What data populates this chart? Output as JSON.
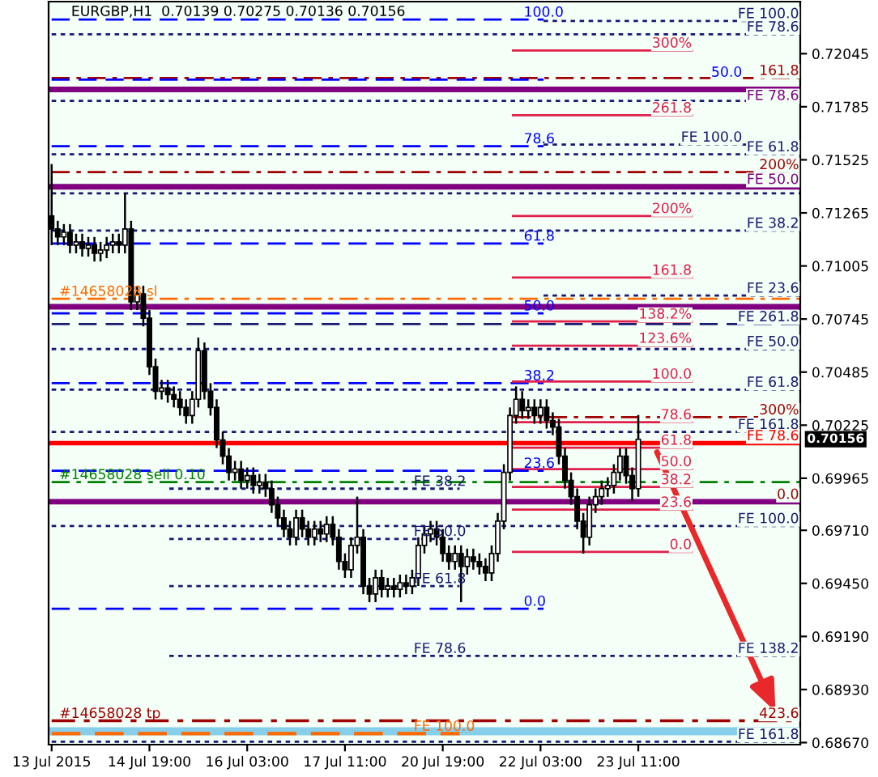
{
  "chart_data": {
    "type": "candlestick",
    "title": "EURGBP,H1  0.70139 0.70275 0.70136 0.70156",
    "color": "#000000",
    "categories": [
      "13 Jul 2015",
      null,
      null,
      null,
      null,
      null,
      null,
      null,
      null,
      null,
      null,
      null,
      null,
      null,
      null,
      null,
      "14 Jul 19:00",
      null,
      null,
      null,
      null,
      null,
      null,
      null,
      null,
      null,
      null,
      null,
      null,
      null,
      null,
      null,
      "16 Jul 03:00",
      null,
      null,
      null,
      null,
      null,
      null,
      null,
      null,
      null,
      null,
      null,
      null,
      null,
      null,
      null,
      "17 Jul 11:00",
      null,
      null,
      null,
      null,
      null,
      null,
      null,
      null,
      null,
      null,
      null,
      null,
      null,
      null,
      null,
      "20 Jul 19:00",
      null,
      null,
      null,
      null,
      null,
      null,
      null,
      null,
      null,
      null,
      null,
      null,
      null,
      null,
      null,
      "22 Jul 03:00",
      null,
      null,
      null,
      null,
      null,
      null,
      null,
      null,
      null,
      null,
      null,
      null,
      null,
      null,
      null,
      "23 Jul 11:00",
      null,
      null,
      null,
      null,
      null,
      null,
      null,
      null,
      null,
      null,
      null,
      null,
      null,
      null,
      null,
      null,
      null,
      null,
      null,
      null,
      null,
      null,
      null,
      null,
      null,
      null
    ],
    "ohlc": [
      [
        0.7125,
        0.71504,
        0.71107,
        0.71186
      ],
      [
        0.71186,
        0.71226,
        0.71107,
        0.71147
      ],
      [
        0.71147,
        0.7121,
        0.71107,
        0.7117
      ],
      [
        0.7117,
        0.7121,
        0.71067,
        0.71107
      ],
      [
        0.71107,
        0.71163,
        0.71067,
        0.71123
      ],
      [
        0.71123,
        0.71163,
        0.71051,
        0.71091
      ],
      [
        0.71091,
        0.71147,
        0.71051,
        0.71107
      ],
      [
        0.71107,
        0.71147,
        0.71027,
        0.71067
      ],
      [
        0.71067,
        0.71123,
        0.71027,
        0.71083
      ],
      [
        0.71083,
        0.71147,
        0.71043,
        0.71107
      ],
      [
        0.71107,
        0.71163,
        0.71067,
        0.71123
      ],
      [
        0.71123,
        0.71163,
        0.71067,
        0.71107
      ],
      [
        0.71107,
        0.71361,
        0.71067,
        0.71186
      ],
      [
        0.71186,
        0.71226,
        0.70789,
        0.70829
      ],
      [
        0.70829,
        0.70908,
        0.70789,
        0.70868
      ],
      [
        0.70868,
        0.70908,
        0.70709,
        0.70749
      ],
      [
        0.70749,
        0.70789,
        0.70471,
        0.70511
      ],
      [
        0.70511,
        0.70551,
        0.70351,
        0.70391
      ],
      [
        0.70391,
        0.70447,
        0.70351,
        0.70407
      ],
      [
        0.70407,
        0.70447,
        0.70335,
        0.70375
      ],
      [
        0.70375,
        0.70415,
        0.70312,
        0.70352
      ],
      [
        0.70352,
        0.70392,
        0.70272,
        0.70312
      ],
      [
        0.70312,
        0.70352,
        0.70232,
        0.70272
      ],
      [
        0.70272,
        0.70392,
        0.70232,
        0.70352
      ],
      [
        0.70352,
        0.70654,
        0.70312,
        0.7059
      ],
      [
        0.7059,
        0.7063,
        0.70351,
        0.70391
      ],
      [
        0.70391,
        0.70431,
        0.70272,
        0.70312
      ],
      [
        0.70312,
        0.70352,
        0.70113,
        0.70153
      ],
      [
        0.70153,
        0.70193,
        0.70033,
        0.70073
      ],
      [
        0.70073,
        0.70113,
        0.69954,
        0.69994
      ],
      [
        0.69994,
        0.7005,
        0.69954,
        0.7001
      ],
      [
        0.7001,
        0.7005,
        0.69914,
        0.69954
      ],
      [
        0.69954,
        0.70018,
        0.69914,
        0.69978
      ],
      [
        0.69978,
        0.70018,
        0.6989,
        0.6993
      ],
      [
        0.6993,
        0.69986,
        0.6989,
        0.69946
      ],
      [
        0.69946,
        0.69986,
        0.69874,
        0.69914
      ],
      [
        0.69914,
        0.69954,
        0.69795,
        0.69835
      ],
      [
        0.69835,
        0.69875,
        0.69731,
        0.69771
      ],
      [
        0.69771,
        0.69811,
        0.69676,
        0.69716
      ],
      [
        0.69716,
        0.69756,
        0.69636,
        0.69676
      ],
      [
        0.69676,
        0.69811,
        0.69636,
        0.69771
      ],
      [
        0.69771,
        0.69811,
        0.69676,
        0.69716
      ],
      [
        0.69716,
        0.69756,
        0.69636,
        0.69676
      ],
      [
        0.69676,
        0.69756,
        0.69636,
        0.69716
      ],
      [
        0.69716,
        0.69756,
        0.69652,
        0.69692
      ],
      [
        0.69692,
        0.69779,
        0.69652,
        0.69739
      ],
      [
        0.69739,
        0.69779,
        0.69636,
        0.69676
      ],
      [
        0.69676,
        0.69716,
        0.69517,
        0.69557
      ],
      [
        0.69557,
        0.69597,
        0.69477,
        0.69517
      ],
      [
        0.69517,
        0.69676,
        0.69477,
        0.69636
      ],
      [
        0.69636,
        0.69875,
        0.69596,
        0.69676
      ],
      [
        0.69676,
        0.69716,
        0.69397,
        0.69437
      ],
      [
        0.69437,
        0.69477,
        0.69358,
        0.69398
      ],
      [
        0.69398,
        0.69517,
        0.69358,
        0.69477
      ],
      [
        0.69477,
        0.69517,
        0.69381,
        0.69421
      ],
      [
        0.69421,
        0.69477,
        0.69381,
        0.69437
      ],
      [
        0.69437,
        0.69477,
        0.69381,
        0.69421
      ],
      [
        0.69421,
        0.69493,
        0.69381,
        0.69453
      ],
      [
        0.69453,
        0.69493,
        0.69397,
        0.69437
      ],
      [
        0.69437,
        0.69517,
        0.69397,
        0.69477
      ],
      [
        0.69477,
        0.69676,
        0.69437,
        0.69636
      ],
      [
        0.69636,
        0.69732,
        0.69596,
        0.69692
      ],
      [
        0.69692,
        0.69756,
        0.69652,
        0.69716
      ],
      [
        0.69716,
        0.69756,
        0.69636,
        0.69676
      ],
      [
        0.69676,
        0.69716,
        0.69556,
        0.69596
      ],
      [
        0.69596,
        0.69636,
        0.69517,
        0.69557
      ],
      [
        0.69557,
        0.69636,
        0.69517,
        0.69596
      ],
      [
        0.69596,
        0.69636,
        0.69358,
        0.69533
      ],
      [
        0.69533,
        0.6962,
        0.69493,
        0.6958
      ],
      [
        0.6958,
        0.6962,
        0.69517,
        0.69557
      ],
      [
        0.69557,
        0.69597,
        0.69493,
        0.69533
      ],
      [
        0.69533,
        0.69573,
        0.69461,
        0.69501
      ],
      [
        0.69501,
        0.69636,
        0.69461,
        0.69596
      ],
      [
        0.69596,
        0.69795,
        0.69556,
        0.69755
      ],
      [
        0.69755,
        0.70034,
        0.69715,
        0.69994
      ],
      [
        0.69994,
        0.70312,
        0.69954,
        0.70272
      ],
      [
        0.70272,
        0.70415,
        0.70232,
        0.70352
      ],
      [
        0.70352,
        0.70392,
        0.70256,
        0.70296
      ],
      [
        0.70296,
        0.70352,
        0.70256,
        0.70312
      ],
      [
        0.70312,
        0.70352,
        0.70232,
        0.70272
      ],
      [
        0.70272,
        0.70352,
        0.70232,
        0.70312
      ],
      [
        0.70312,
        0.70352,
        0.70208,
        0.70248
      ],
      [
        0.70248,
        0.70288,
        0.70176,
        0.70216
      ],
      [
        0.70216,
        0.70256,
        0.70033,
        0.70073
      ],
      [
        0.70073,
        0.70113,
        0.69914,
        0.69954
      ],
      [
        0.69954,
        0.69994,
        0.69835,
        0.69875
      ],
      [
        0.69875,
        0.69915,
        0.69715,
        0.69755
      ],
      [
        0.69755,
        0.69795,
        0.69596,
        0.69676
      ],
      [
        0.69676,
        0.69875,
        0.69636,
        0.69835
      ],
      [
        0.69835,
        0.69915,
        0.69795,
        0.69875
      ],
      [
        0.69875,
        0.69954,
        0.69835,
        0.69914
      ],
      [
        0.69914,
        0.6997,
        0.69874,
        0.6993
      ],
      [
        0.6993,
        0.70034,
        0.6989,
        0.69994
      ],
      [
        0.69994,
        0.70113,
        0.69954,
        0.70073
      ],
      [
        0.70073,
        0.70113,
        0.69938,
        0.69978
      ],
      [
        0.69978,
        0.70018,
        0.69851,
        0.69914
      ],
      [
        0.69914,
        0.70275,
        0.69874,
        0.70156
      ],
      null,
      null,
      null,
      null,
      null,
      null,
      null,
      null,
      null,
      null,
      null,
      null,
      null,
      null,
      null,
      null,
      null,
      null,
      null,
      null,
      null,
      null,
      null,
      null,
      null,
      null
    ],
    "ylim": [
      0.6866,
      0.723
    ],
    "yticks": [
      0.72045,
      0.71785,
      0.71525,
      0.71265,
      0.71005,
      0.70745,
      0.70485,
      0.70225,
      0.69965,
      {
        "value": 0.6971,
        "label": "0.69710"
      },
      {
        "value": 0.6945,
        "label": "0.69450"
      },
      {
        "value": 0.6919,
        "label": "0.69190"
      },
      {
        "value": 0.6893,
        "label": "0.68930"
      },
      {
        "value": 0.6867,
        "label": "0.68670"
      }
    ],
    "ref_lines": [
      {
        "axis": "y",
        "value": 0.72212,
        "color": "#0000ff",
        "line_style": "dashed"
      },
      {
        "axis": "y",
        "value": 0.72205,
        "label": "FE 100.0",
        "color": "#191970",
        "line_style": "dotted"
      },
      {
        "axis": "y",
        "value": 0.7214,
        "label": "FE 78.6",
        "color": "#191970",
        "line_style": "dotted"
      },
      {
        "axis": "y",
        "value": 0.72061,
        "color": "#e0204a",
        "line_style": "solid"
      },
      {
        "axis": "y",
        "value": 0.71926,
        "color": "#a00000",
        "line_style": "dashdot"
      },
      {
        "axis": "y",
        "value": 0.71918,
        "color": "#0000ff",
        "line_style": "dashed"
      },
      {
        "axis": "y",
        "value": 0.7187,
        "label": "FE 78.6",
        "color": "#800080",
        "line_style": "solid"
      },
      {
        "axis": "y",
        "value": 0.71814,
        "color": "#191970",
        "line_style": "dotted"
      },
      {
        "axis": "y",
        "value": 0.71743,
        "color": "#e0204a",
        "line_style": "solid"
      },
      {
        "axis": "y",
        "value": 0.716,
        "label": "FE 100.0",
        "color": "#191970",
        "line_style": "dotted"
      },
      {
        "axis": "y",
        "value": 0.71592,
        "color": "#0000ff",
        "line_style": "dashed"
      },
      {
        "axis": "y",
        "value": 0.71552,
        "label": "FE 61.8",
        "color": "#191970",
        "line_style": "dotted"
      },
      {
        "axis": "y",
        "value": 0.71465,
        "color": "#a00000",
        "line_style": "dashdot"
      },
      {
        "axis": "y",
        "value": 0.71393,
        "label": "FE 50.0",
        "color": "#800080",
        "line_style": "solid"
      },
      {
        "axis": "y",
        "value": 0.71361,
        "color": "#191970",
        "line_style": "dotted"
      },
      {
        "axis": "y",
        "value": 0.7125,
        "color": "#e0204a",
        "line_style": "solid"
      },
      {
        "axis": "y",
        "value": 0.71178,
        "label": "FE 38.2",
        "color": "#191970",
        "line_style": "dotted"
      },
      {
        "axis": "y",
        "value": 0.71115,
        "color": "#0000ff",
        "line_style": "dashed"
      },
      {
        "axis": "y",
        "value": 0.70948,
        "color": "#e0204a",
        "line_style": "solid"
      },
      {
        "axis": "y",
        "value": 0.70844,
        "label": "#14658028 sl",
        "color": "#ff6a00",
        "line_style": "dashdot"
      },
      {
        "axis": "y",
        "value": 0.7086,
        "label": "FE 23.6",
        "color": "#191970",
        "line_style": "dotted"
      },
      {
        "axis": "y",
        "value": 0.70805,
        "color": "#800080",
        "line_style": "solid"
      },
      {
        "axis": "y",
        "value": 0.70773,
        "color": "#0000ff",
        "line_style": "dashed"
      },
      {
        "axis": "y",
        "value": 0.7072,
        "label": "FE 261.8",
        "color": "#191970",
        "line_style": "dashed"
      },
      {
        "axis": "y",
        "value": 0.70733,
        "color": "#e0204a",
        "line_style": "solid"
      },
      {
        "axis": "y",
        "value": 0.70614,
        "color": "#e0204a",
        "line_style": "solid"
      },
      {
        "axis": "y",
        "value": 0.70598,
        "label": "FE 50.0",
        "color": "#191970",
        "line_style": "dotted"
      },
      {
        "axis": "y",
        "value": 0.70431,
        "color": "#0000ff",
        "line_style": "dashed"
      },
      {
        "axis": "y",
        "value": 0.70439,
        "color": "#e0204a",
        "line_style": "solid"
      },
      {
        "axis": "y",
        "value": 0.70399,
        "label": "FE 61.8",
        "color": "#191970",
        "line_style": "dotted"
      },
      {
        "axis": "y",
        "value": 0.70264,
        "color": "#a00000",
        "line_style": "dashdot"
      },
      {
        "axis": "y",
        "value": 0.7024,
        "color": "#e0204a",
        "line_style": "solid"
      },
      {
        "axis": "y",
        "value": 0.70192,
        "label": "FE 161.8",
        "color": "#191970",
        "line_style": "dotted"
      },
      {
        "axis": "y",
        "value": 0.70137,
        "label": "FE 78.6",
        "color": "#ff0000",
        "line_style": "solid"
      },
      {
        "axis": "y",
        "value": 0.70115,
        "color": "#e0204a",
        "line_style": "solid"
      },
      {
        "axis": "y",
        "value": 0.7001,
        "color": "#e0204a",
        "line_style": "solid"
      },
      {
        "axis": "y",
        "value": 0.70002,
        "color": "#0000ff",
        "line_style": "dashed"
      },
      {
        "axis": "y",
        "value": 0.69946,
        "label": "#14658028 sell 0.10",
        "color": "#008000",
        "line_style": "dashdot"
      },
      {
        "axis": "y",
        "value": 0.69914,
        "label": "FE 38.2",
        "color": "#191970",
        "line_style": "dotted"
      },
      {
        "axis": "y",
        "value": 0.69922,
        "color": "#e0204a",
        "line_style": "solid"
      },
      {
        "axis": "y",
        "value": 0.6985,
        "color": "#800080",
        "line_style": "solid"
      },
      {
        "axis": "y",
        "value": 0.69811,
        "color": "#e0204a",
        "line_style": "solid"
      },
      {
        "axis": "y",
        "value": 0.69731,
        "label": "FE 100.0",
        "color": "#191970",
        "line_style": "dotted"
      },
      {
        "axis": "y",
        "value": 0.69668,
        "label": "FE 50.0",
        "color": "#191970",
        "line_style": "dotted"
      },
      {
        "axis": "y",
        "value": 0.69604,
        "color": "#e0204a",
        "line_style": "solid"
      },
      {
        "axis": "y",
        "value": 0.69437,
        "label": "FE 61.8",
        "color": "#191970",
        "line_style": "dotted"
      },
      {
        "axis": "y",
        "value": 0.69326,
        "color": "#0000ff",
        "line_style": "dashed"
      },
      {
        "axis": "y",
        "value": 0.69095,
        "label": "FE 78.6",
        "color": "#191970",
        "line_style": "dotted"
      },
      {
        "axis": "y",
        "value": 0.68777,
        "label": "#14658028 tp",
        "color": "#a00000",
        "line_style": "dashdot"
      },
      {
        "axis": "y",
        "value": 0.68714,
        "label": "FE 100.0",
        "color": "#ff6a00",
        "line_style": "dashed"
      },
      {
        "axis": "y",
        "value": 0.68674,
        "label": "FE 161.8",
        "color": "#191970",
        "line_style": "dotted"
      }
    ],
    "annotations": [
      {
        "text": "100.0",
        "y": 0.72212
      },
      {
        "text": "300%",
        "y": 0.72061
      },
      {
        "text": "161.8",
        "y": 0.71926
      },
      {
        "text": "50.0",
        "y": 0.71918
      },
      {
        "text": "261.8",
        "y": 0.71743
      },
      {
        "text": "78.6",
        "y": 0.71592
      },
      {
        "text": "200%",
        "y": 0.71465
      },
      {
        "text": "200%",
        "y": 0.7125
      },
      {
        "text": "61.8",
        "y": 0.71115
      },
      {
        "text": "161.8",
        "y": 0.70948
      },
      {
        "text": "50.0",
        "y": 0.70773
      },
      {
        "text": "138.2%",
        "y": 0.70733
      },
      {
        "text": "123.6%",
        "y": 0.70614
      },
      {
        "text": "38.2",
        "y": 0.70431
      },
      {
        "text": "100.0",
        "y": 0.70439
      },
      {
        "text": "300%",
        "y": 0.70264
      },
      {
        "text": "78.6",
        "y": 0.7024
      },
      {
        "text": "61.8",
        "y": 0.70115
      },
      {
        "text": "50.0",
        "y": 0.7001
      },
      {
        "text": "23.6",
        "y": 0.70002
      },
      {
        "text": "38.2",
        "y": 0.69922
      },
      {
        "text": "0.0",
        "y": 0.6985
      },
      {
        "text": "23.6",
        "y": 0.69811
      },
      {
        "text": "0.0",
        "y": 0.69604
      },
      {
        "text": "0.0",
        "y": 0.69326
      },
      {
        "text": "FE 138.2",
        "y": 0.69095
      },
      {
        "text": "423.6",
        "y": 0.68777
      },
      "0.70156"
    ],
    "bands": [
      {
        "axis": "y",
        "from": 0.68706,
        "to": 0.68745,
        "color": "#87ceeb"
      }
    ]
  }
}
